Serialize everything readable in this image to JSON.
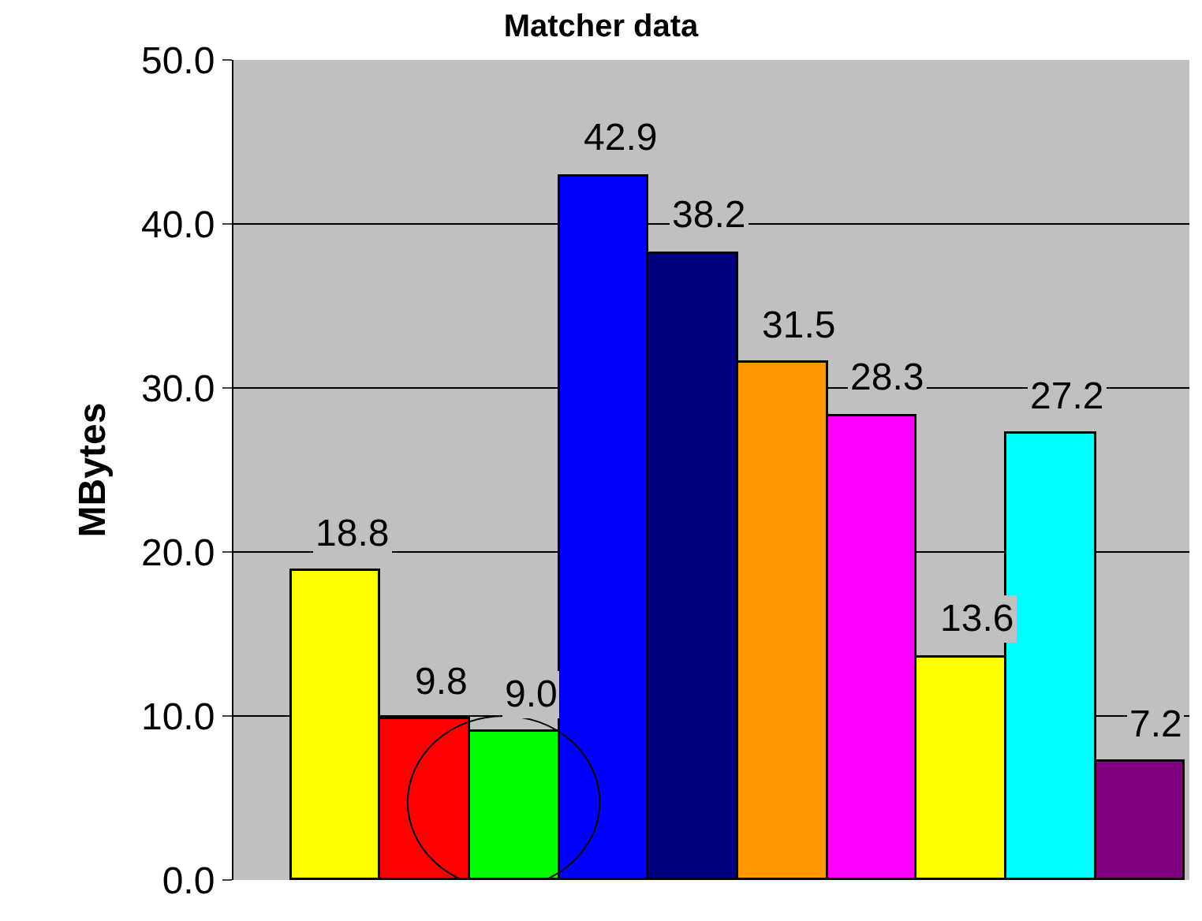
{
  "chart_data": {
    "type": "bar",
    "title": "Matcher data",
    "ylabel": "MBytes",
    "categories": [
      null,
      null,
      null,
      null,
      null,
      null,
      null,
      null,
      null,
      null
    ],
    "values": [
      18.8,
      9.8,
      9.0,
      42.9,
      38.2,
      31.5,
      28.3,
      13.6,
      27.2,
      7.2
    ],
    "colors": [
      "#ffff00",
      "#ff0000",
      "#00ff00",
      "#0000ff",
      "#000080",
      "#ff9900",
      "#ff00ff",
      "#ffff00",
      "#00ffff",
      "#800080"
    ],
    "ylim": [
      0,
      50
    ],
    "yticks": [
      {
        "value": 0,
        "label": "0.0"
      },
      {
        "value": 10,
        "label": "10.0"
      },
      {
        "value": 20,
        "label": "20.0"
      },
      {
        "value": 30,
        "label": "30.0"
      },
      {
        "value": 40,
        "label": "40.0"
      },
      {
        "value": 50,
        "label": "50.0"
      }
    ],
    "value_labels": [
      "18.8",
      "9.8",
      "9.0",
      "42.9",
      "38.2",
      "31.5",
      "28.3",
      "13.6",
      "27.2",
      "7.2"
    ],
    "grid": "y",
    "legend": false
  }
}
